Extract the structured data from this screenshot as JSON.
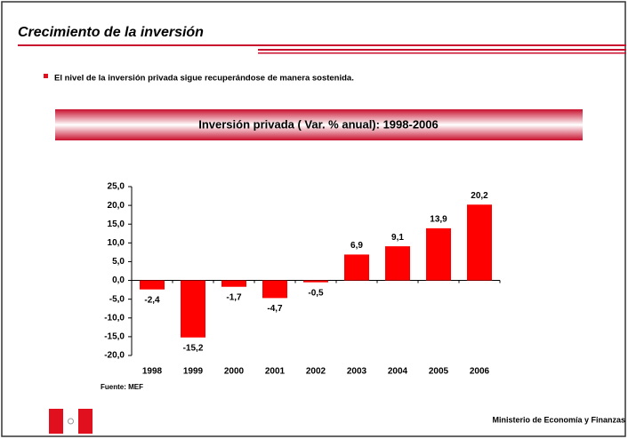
{
  "slide_title": "Crecimiento de la inversión",
  "bullet": "El nivel de la inversión privada sigue recuperándose de manera sostenida.",
  "footer": "Ministerio de Economía y Finanzas",
  "chart_data": {
    "type": "bar",
    "title": "Inversión privada ( Var. % anual): 1998-2006",
    "categories": [
      "1998",
      "1999",
      "2000",
      "2001",
      "2002",
      "2003",
      "2004",
      "2005",
      "2006"
    ],
    "values": [
      -2.4,
      -15.2,
      -1.7,
      -4.7,
      -0.5,
      6.9,
      9.1,
      13.9,
      20.2
    ],
    "value_labels": [
      "-2,4",
      "-15,2",
      "-1,7",
      "-4,7",
      "-0,5",
      "6,9",
      "9,1",
      "13,9",
      "20,2"
    ],
    "color": "#ff0000",
    "ylim": [
      -20,
      25
    ],
    "yticks": [
      {
        "value": -20,
        "label": "-20,0"
      },
      {
        "value": -15,
        "label": "-15,0"
      },
      {
        "value": -10,
        "label": "-10,0"
      },
      {
        "value": -5,
        "label": "-5,0"
      },
      {
        "value": 0,
        "label": "0,0"
      },
      {
        "value": 5,
        "label": "5,0"
      },
      {
        "value": 10,
        "label": "10,0"
      },
      {
        "value": 15,
        "label": "15,0"
      },
      {
        "value": 20,
        "label": "20,0"
      },
      {
        "value": 25,
        "label": "25,0"
      }
    ],
    "source": "Fuente: MEF"
  }
}
